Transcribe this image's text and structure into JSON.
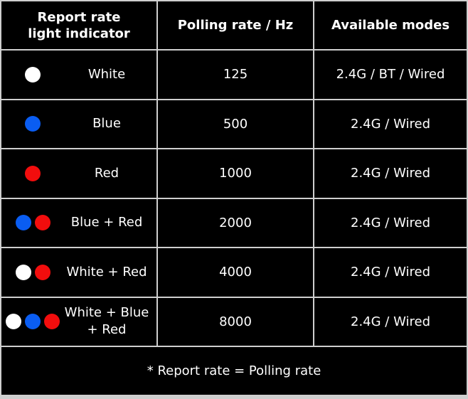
{
  "headers": [
    "Report rate\nlight indicator",
    "Polling rate / Hz",
    "Available modes"
  ],
  "colors": {
    "White": "#ffffff",
    "Blue": "#0a5df2",
    "Red": "#f20d0d"
  },
  "rows": [
    {
      "dots": [
        "White"
      ],
      "label": "White",
      "rate": "125",
      "modes": "2.4G / BT / Wired"
    },
    {
      "dots": [
        "Blue"
      ],
      "label": "Blue",
      "rate": "500",
      "modes": "2.4G / Wired"
    },
    {
      "dots": [
        "Red"
      ],
      "label": "Red",
      "rate": "1000",
      "modes": "2.4G / Wired"
    },
    {
      "dots": [
        "Blue",
        "Red"
      ],
      "label": "Blue + Red",
      "rate": "2000",
      "modes": "2.4G / Wired"
    },
    {
      "dots": [
        "White",
        "Red"
      ],
      "label": "White + Red",
      "rate": "4000",
      "modes": "2.4G / Wired"
    },
    {
      "dots": [
        "White",
        "Blue",
        "Red"
      ],
      "label": "White + Blue + Red",
      "rate": "8000",
      "modes": "2.4G / Wired"
    }
  ],
  "footnote": "* Report rate = Polling rate"
}
